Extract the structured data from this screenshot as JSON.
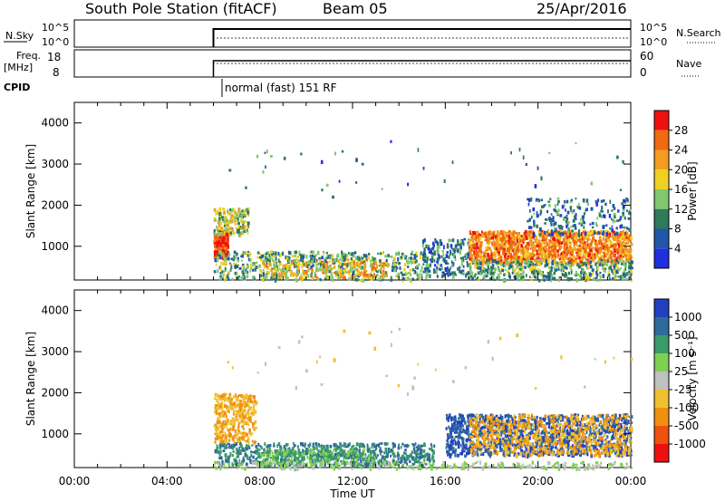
{
  "header": {
    "station": "South Pole Station (fitACF)",
    "beam": "Beam 05",
    "date": "25/Apr/2016"
  },
  "panels": {
    "nsky": {
      "left_label": "N.Sky",
      "right_label": "N.Search",
      "left_ticks": [
        "10^5",
        "10^0"
      ],
      "right_ticks": [
        "10^5",
        "10^0"
      ]
    },
    "freq": {
      "left_label_top": "Freq.",
      "left_label_bottom": "[MHz]",
      "right_label": "Nave",
      "left_ticks": [
        "18",
        "8"
      ],
      "right_ticks": [
        "60",
        "0"
      ]
    },
    "cpid": {
      "label": "CPID",
      "text": "normal (fast) 151 RF"
    }
  },
  "chart_data": [
    {
      "type": "heatmap",
      "title": "Power",
      "xlabel": "",
      "ylabel": "Slant Range [km]",
      "x_range_hours": [
        0,
        24
      ],
      "ylim": [
        180,
        4500
      ],
      "y_ticks": [
        "4000",
        "3000",
        "2000",
        "1000"
      ],
      "colorbar": {
        "label": "Power [dB]",
        "ticks": [
          "28",
          "24",
          "20",
          "16",
          "12",
          "8",
          "4"
        ],
        "colors": [
          "#1f2fe0",
          "#2157a8",
          "#2e7a5a",
          "#7fc870",
          "#f0d020",
          "#f39c1f",
          "#f06a10",
          "#ee1010"
        ],
        "range": [
          0,
          32
        ]
      },
      "observation_start_hour": 6.0
    },
    {
      "type": "heatmap",
      "title": "Velocity",
      "xlabel": "Time UT",
      "ylabel": "Slant Range [km]",
      "x_range_hours": [
        0,
        24
      ],
      "x_ticks": [
        "00:00",
        "04:00",
        "08:00",
        "12:00",
        "16:00",
        "20:00",
        "00:00"
      ],
      "ylim": [
        180,
        4500
      ],
      "y_ticks": [
        "4000",
        "3000",
        "2000",
        "1000"
      ],
      "colorbar": {
        "label": "Velocity [m s⁻¹]",
        "ticks": [
          "1000",
          "500",
          "100",
          "25",
          "-25",
          "-100",
          "-500",
          "-1000"
        ],
        "colors": [
          "#2040c0",
          "#2e6a9a",
          "#3a9a6a",
          "#7fd050",
          "#c0c0c0",
          "#f0c030",
          "#f0900f",
          "#f05010",
          "#ee1010"
        ]
      },
      "observation_start_hour": 6.0
    }
  ]
}
